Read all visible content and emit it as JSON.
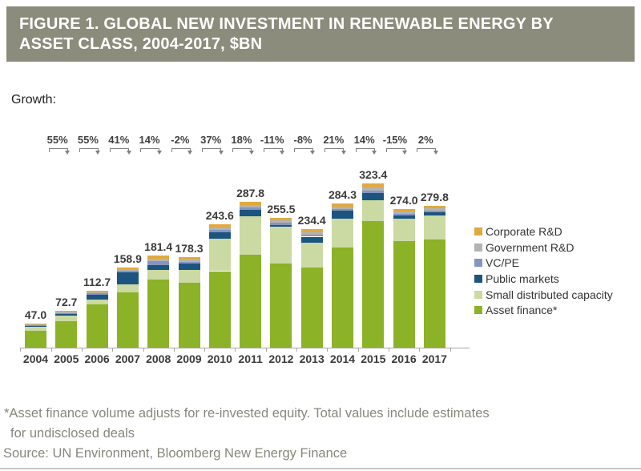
{
  "header": {
    "title_lines": [
      "FIGURE 1. GLOBAL NEW INVESTMENT IN RENEWABLE ENERGY BY",
      "ASSET CLASS, 2004-2017, $BN"
    ],
    "bg_color": "#8c8c7c"
  },
  "growth_label": "Growth:",
  "chart_data": {
    "type": "bar",
    "subtype": "stacked",
    "title": "FIGURE 1. GLOBAL NEW INVESTMENT IN RENEWABLE ENERGY BY ASSET CLASS, 2004-2017, $BN",
    "unit": "$bn",
    "categories": [
      "2004",
      "2005",
      "2006",
      "2007",
      "2008",
      "2009",
      "2010",
      "2011",
      "2012",
      "2013",
      "2014",
      "2015",
      "2016",
      "2017"
    ],
    "totals": [
      47.0,
      72.7,
      112.7,
      158.9,
      181.4,
      178.3,
      243.6,
      287.8,
      255.5,
      234.4,
      284.3,
      323.4,
      274.0,
      279.8
    ],
    "total_labels": [
      "47.0",
      "72.7",
      "112.7",
      "158.9",
      "181.4",
      "178.3",
      "243.6",
      "287.8",
      "255.5",
      "234.4",
      "284.3",
      "323.4",
      "274.0",
      "279.8"
    ],
    "growth_percent": [
      "55%",
      "55%",
      "41%",
      "14%",
      "-2%",
      "37%",
      "18%",
      "-11%",
      "-8%",
      "21%",
      "14%",
      "-15%",
      "2%"
    ],
    "series": [
      {
        "name": "Asset finance*",
        "color": "#8cb227",
        "values": [
          33.4,
          52.6,
          86.0,
          109.5,
          134.2,
          128.6,
          151.0,
          184.2,
          166.0,
          157.4,
          198.2,
          250.0,
          210.0,
          213.5
        ]
      },
      {
        "name": "Small distributed capacity",
        "color": "#cbd9a2",
        "values": [
          8.6,
          10.0,
          8.6,
          15.8,
          18.6,
          25.5,
          64.4,
          75.4,
          72.0,
          49.9,
          56.7,
          41.0,
          45.0,
          48.0
        ]
      },
      {
        "name": "Public markets",
        "color": "#1c5480",
        "values": [
          0.6,
          4.2,
          9.5,
          23.0,
          10.7,
          11.5,
          11.6,
          12.2,
          4.3,
          11.7,
          14.8,
          14.2,
          5.8,
          6.4
        ]
      },
      {
        "name": "VC/PE",
        "color": "#8496be",
        "values": [
          1.0,
          1.5,
          3.0,
          3.7,
          7.6,
          3.3,
          5.8,
          5.5,
          4.2,
          3.8,
          3.2,
          4.5,
          3.8,
          2.8
        ]
      },
      {
        "name": "Government R&D",
        "color": "#b3b3b3",
        "values": [
          1.9,
          2.1,
          2.4,
          2.8,
          4.2,
          4.8,
          4.8,
          4.6,
          4.4,
          4.8,
          5.1,
          6.0,
          4.0,
          3.8
        ]
      },
      {
        "name": "Corporate R&D",
        "color": "#e2a93e",
        "values": [
          1.5,
          2.3,
          3.2,
          4.1,
          6.1,
          4.6,
          6.0,
          5.9,
          4.6,
          6.8,
          6.3,
          7.7,
          5.4,
          5.3
        ]
      }
    ],
    "legend_top_to_bottom": [
      "Corporate R&D",
      "Government R&D",
      "VC/PE",
      "Public markets",
      "Small distributed capacity",
      "Asset finance*"
    ],
    "legend_position": "right",
    "grid": false,
    "value_axis_shown": false
  },
  "footnote": {
    "asterisk_note": "*Asset finance volume adjusts for re-invested equity. Total values include estimates for undisclosed deals",
    "source": "Source: UN Environment, Bloomberg New Energy Finance"
  }
}
